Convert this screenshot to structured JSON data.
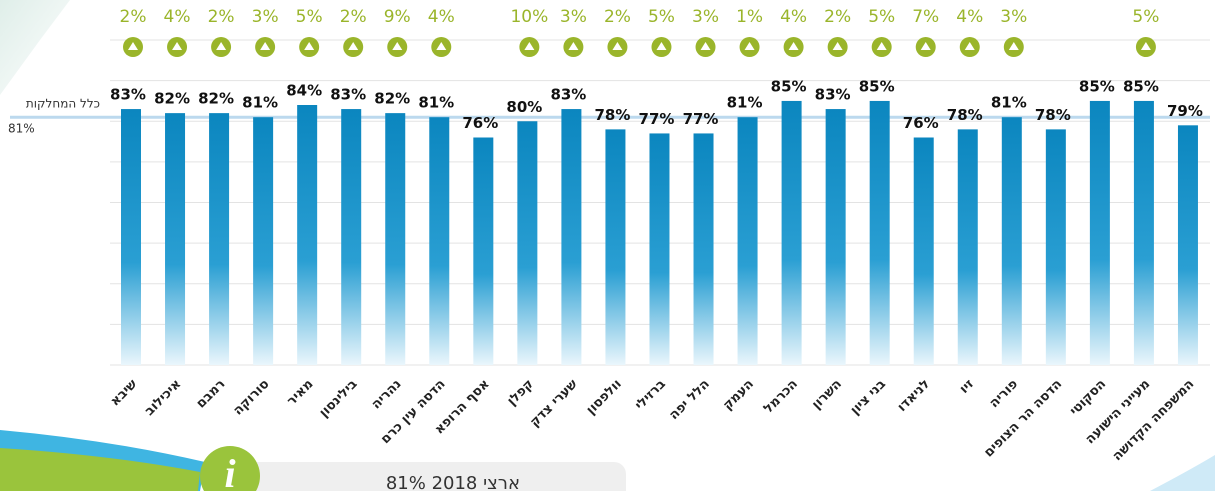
{
  "chart_data": {
    "type": "bar",
    "categories": [
      "שיבא",
      "איכילוב",
      "רמבם",
      "סורוקה",
      "מאיר",
      "בילינסון",
      "נהריה",
      "הדסה עין כרם",
      "אסף הרופא",
      "קפלן",
      "שערי צדק",
      "וולפסון",
      "ברזילי",
      "הלל יפה",
      "העמק",
      "הכרמל",
      "השרון",
      "בני ציון",
      "לניאדו",
      "זיו",
      "פוריה",
      "הדסה הר הצופים",
      "הסקוטי",
      "מעייני הישועה",
      "המשפחה הקדושה"
    ],
    "values": [
      83,
      82,
      82,
      81,
      84,
      83,
      82,
      81,
      76,
      80,
      83,
      78,
      77,
      77,
      81,
      85,
      83,
      85,
      76,
      78,
      81,
      78,
      85,
      85,
      79
    ],
    "value_labels": [
      "83%",
      "82%",
      "82%",
      "81%",
      "84%",
      "83%",
      "82%",
      "81%",
      "76%",
      "80%",
      "83%",
      "78%",
      "77%",
      "77%",
      "81%",
      "85%",
      "83%",
      "85%",
      "76%",
      "78%",
      "81%",
      "78%",
      "85%",
      "85%",
      "79%"
    ],
    "color": "#0b86bf",
    "ylim": [
      20,
      100
    ],
    "yticks": [
      20,
      30,
      40,
      50,
      60,
      70,
      80,
      90,
      100
    ],
    "grid": true,
    "changes": {
      "color": "#9ab52b",
      "values": [
        2,
        4,
        2,
        3,
        5,
        2,
        9,
        4,
        null,
        10,
        3,
        2,
        5,
        3,
        1,
        4,
        2,
        5,
        7,
        4,
        3,
        null,
        null,
        5,
        null
      ],
      "value_labels": [
        "2%",
        "4%",
        "2%",
        "3%",
        "5%",
        "2%",
        "9%",
        "4%",
        null,
        "10%",
        "3%",
        "2%",
        "5%",
        "3%",
        "1%",
        "4%",
        "2%",
        "5%",
        "7%",
        "4%",
        "3%",
        null,
        null,
        "5%",
        null
      ]
    },
    "reference_line": {
      "label": "כלל המחלקות",
      "value": 81,
      "value_label": "81%"
    },
    "footnote": "ארצי 2018 81%"
  }
}
